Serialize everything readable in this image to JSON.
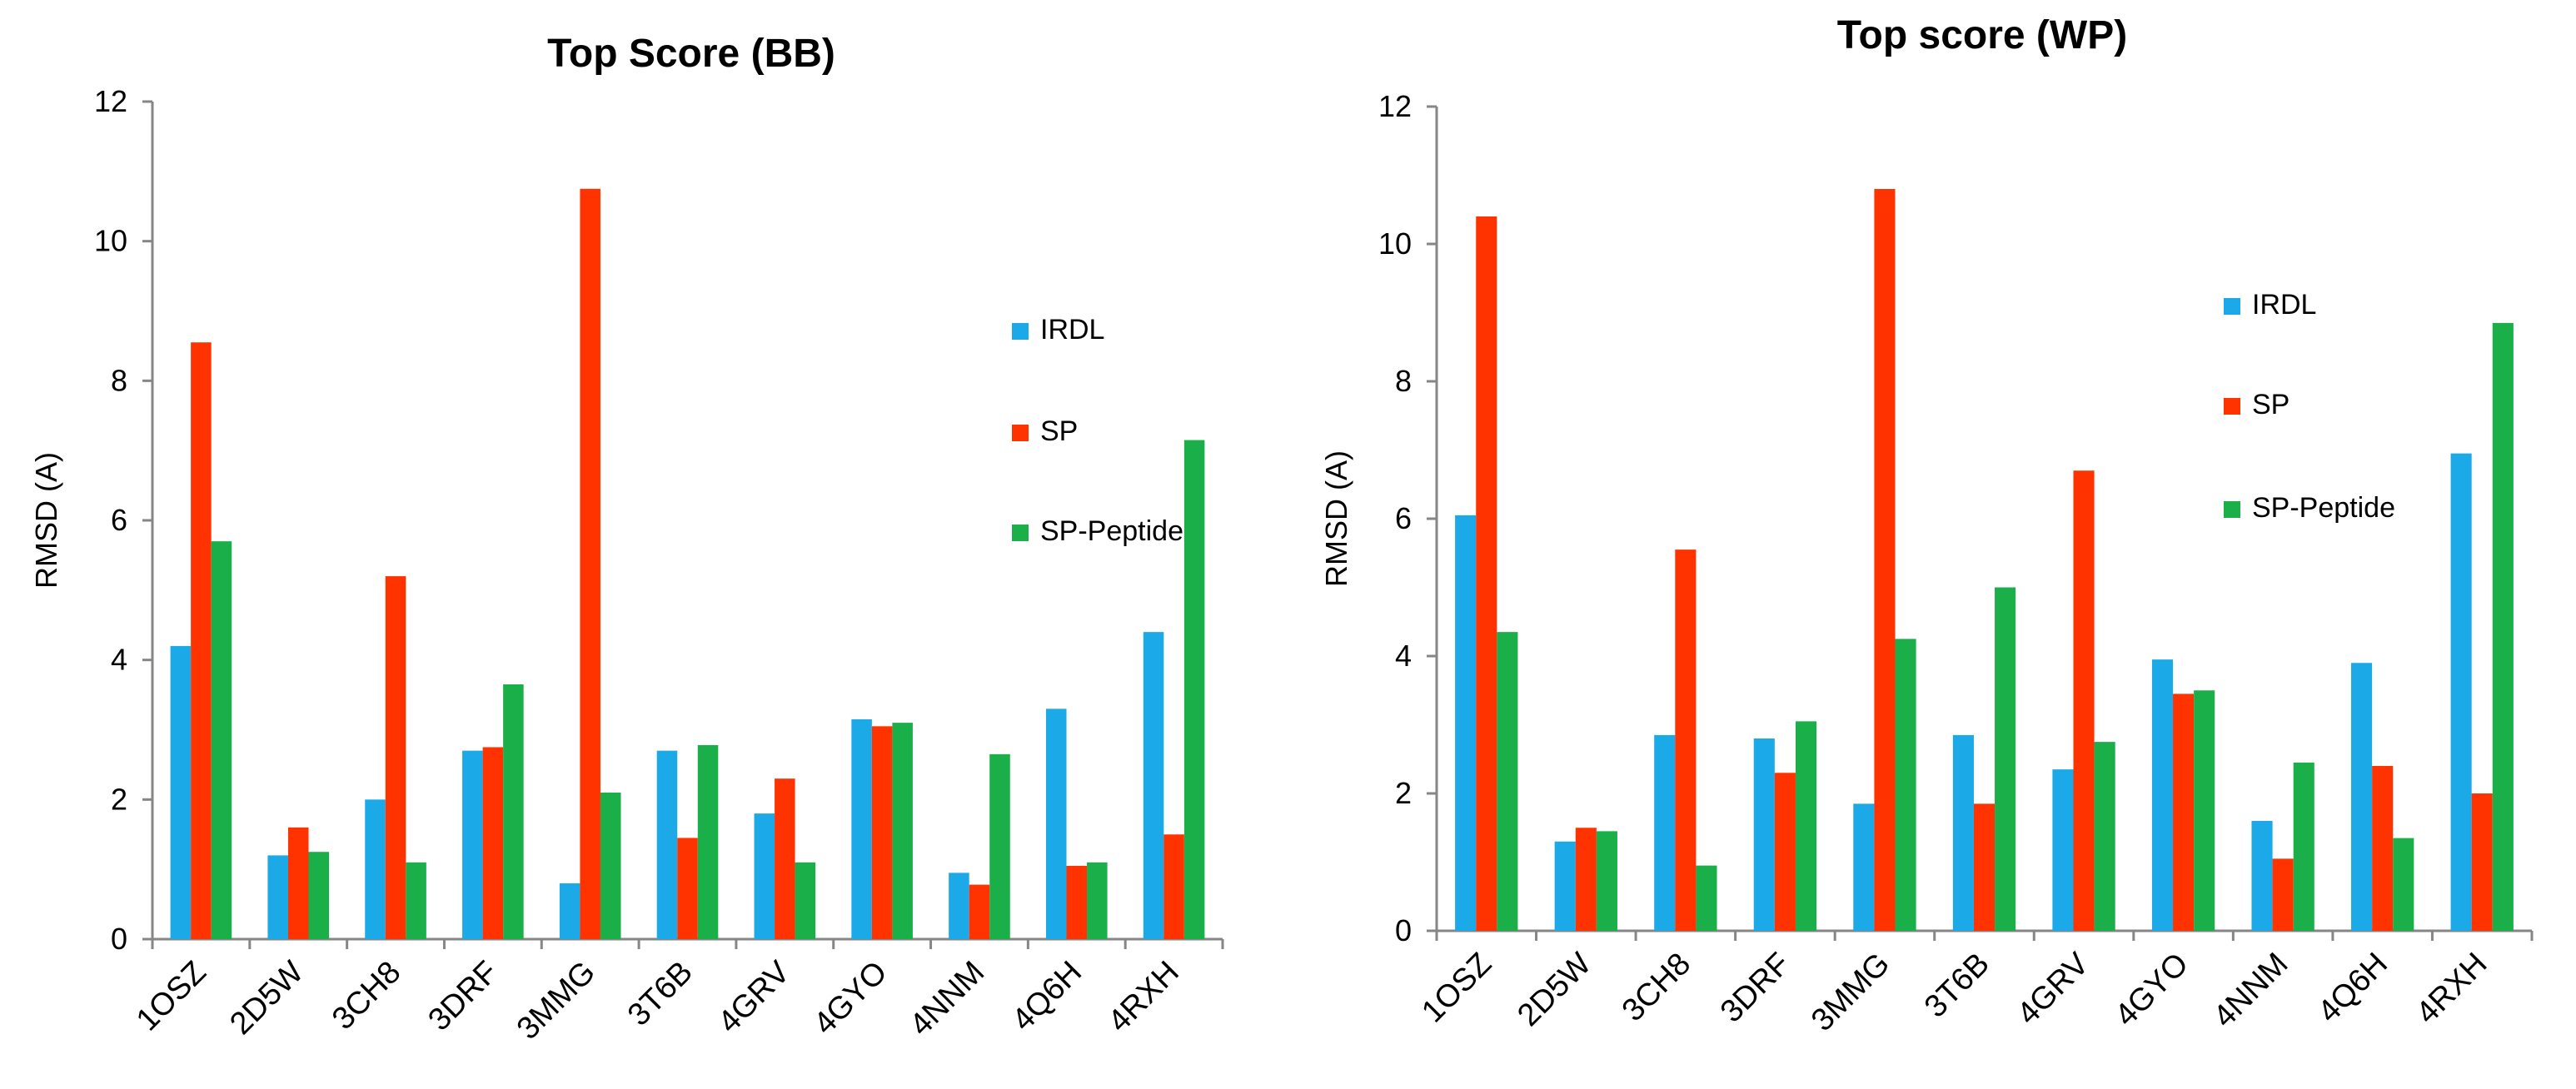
{
  "chart_data": [
    {
      "type": "bar",
      "title": "Top Score (BB)",
      "xlabel": "",
      "ylabel": "RMSD (A)",
      "ylim": [
        0,
        12
      ],
      "yticks": [
        "0",
        "2",
        "4",
        "6",
        "8",
        "10",
        "12"
      ],
      "grid": false,
      "legend_position": "right",
      "categories": [
        "1OSZ",
        "2D5W",
        "3CH8",
        "3DRF",
        "3MMG",
        "3T6B",
        "4GRV",
        "4GYO",
        "4NNM",
        "4Q6H",
        "4RXH"
      ],
      "series": [
        {
          "name": "IRDL",
          "color": "#1BA9E8",
          "values": [
            4.2,
            1.2,
            2.0,
            2.7,
            0.8,
            2.7,
            1.8,
            3.15,
            0.95,
            3.3,
            4.4
          ]
        },
        {
          "name": "SP",
          "color": "#FF3300",
          "values": [
            8.55,
            1.6,
            5.2,
            2.75,
            10.75,
            1.45,
            2.3,
            3.05,
            0.78,
            1.05,
            1.5
          ]
        },
        {
          "name": "SP-Peptide",
          "color": "#1BAF4A",
          "values": [
            5.7,
            1.25,
            1.1,
            3.65,
            2.1,
            2.78,
            1.1,
            3.1,
            2.65,
            1.1,
            7.15
          ]
        }
      ]
    },
    {
      "type": "bar",
      "title": "Top score (WP)",
      "xlabel": "",
      "ylabel": "RMSD (A)",
      "ylim": [
        0,
        12
      ],
      "yticks": [
        "0",
        "2",
        "4",
        "6",
        "8",
        "10",
        "12"
      ],
      "grid": false,
      "legend_position": "right",
      "categories": [
        "1OSZ",
        "2D5W",
        "3CH8",
        "3DRF",
        "3MMG",
        "3T6B",
        "4GRV",
        "4GYO",
        "4NNM",
        "4Q6H",
        "4RXH"
      ],
      "series": [
        {
          "name": "IRDL",
          "color": "#1BA9E8",
          "values": [
            6.05,
            1.3,
            2.85,
            2.8,
            1.85,
            2.85,
            2.35,
            3.95,
            1.6,
            3.9,
            6.95
          ]
        },
        {
          "name": "SP",
          "color": "#FF3300",
          "values": [
            10.4,
            1.5,
            5.55,
            2.3,
            10.8,
            1.85,
            6.7,
            3.45,
            1.05,
            2.4,
            2.0
          ]
        },
        {
          "name": "SP-Peptide",
          "color": "#1BAF4A",
          "values": [
            4.35,
            1.45,
            0.95,
            3.05,
            4.25,
            5.0,
            2.75,
            3.5,
            2.45,
            1.35,
            8.85
          ]
        }
      ]
    }
  ]
}
